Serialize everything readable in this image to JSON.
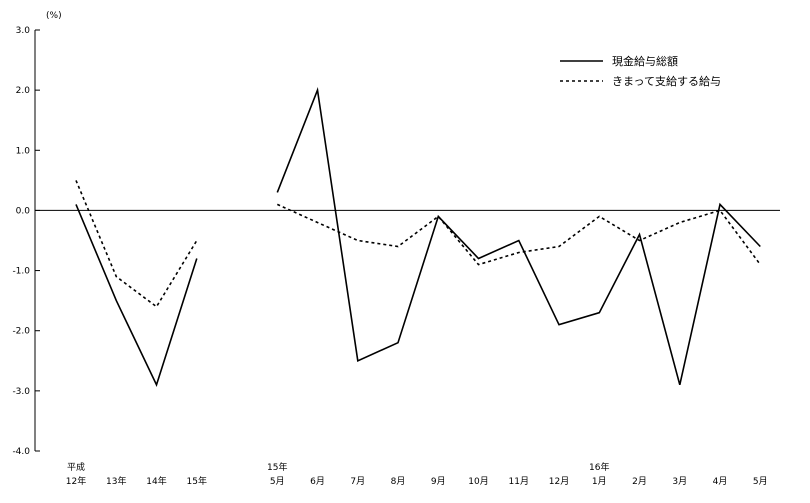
{
  "chart_data": {
    "type": "line",
    "unit_label": "(%)",
    "ylim": [
      -4.0,
      3.0
    ],
    "yticks": [
      "3.0",
      "2.0",
      "1.0",
      "0.0",
      "-1.0",
      "-2.0",
      "-3.0",
      "-4.0"
    ],
    "ytick_values": [
      3,
      2,
      1,
      0,
      -1,
      -2,
      -3,
      -4
    ],
    "grid": false,
    "legend_position": "top-right",
    "x_labels": [
      {
        "top": "平成",
        "bottom": "12年"
      },
      {
        "top": "",
        "bottom": "13年"
      },
      {
        "top": "",
        "bottom": "14年"
      },
      {
        "top": "",
        "bottom": "15年"
      },
      {
        "top": "",
        "bottom": ""
      },
      {
        "top": "15年",
        "bottom": "5月"
      },
      {
        "top": "",
        "bottom": "6月"
      },
      {
        "top": "",
        "bottom": "7月"
      },
      {
        "top": "",
        "bottom": "8月"
      },
      {
        "top": "",
        "bottom": "9月"
      },
      {
        "top": "",
        "bottom": "10月"
      },
      {
        "top": "",
        "bottom": "11月"
      },
      {
        "top": "",
        "bottom": "12月"
      },
      {
        "top": "16年",
        "bottom": "1月"
      },
      {
        "top": "",
        "bottom": "2月"
      },
      {
        "top": "",
        "bottom": "3月"
      },
      {
        "top": "",
        "bottom": "4月"
      },
      {
        "top": "",
        "bottom": "5月"
      }
    ],
    "series": [
      {
        "name": "現金給与総額",
        "style": "solid",
        "color": "#000000",
        "segments": [
          [
            [
              0,
              0.1
            ],
            [
              1,
              -1.5
            ],
            [
              2,
              -2.9
            ],
            [
              3,
              -0.8
            ]
          ],
          [
            [
              5,
              0.3
            ],
            [
              6,
              2.0
            ],
            [
              7,
              -2.5
            ],
            [
              8,
              -2.2
            ],
            [
              9,
              -0.1
            ],
            [
              10,
              -0.8
            ],
            [
              11,
              -0.5
            ],
            [
              12,
              -1.9
            ],
            [
              13,
              -1.7
            ],
            [
              14,
              -0.4
            ],
            [
              15,
              -2.9
            ],
            [
              16,
              0.1
            ],
            [
              17,
              -0.6
            ]
          ]
        ]
      },
      {
        "name": "きまって支給する給与",
        "style": "dashed",
        "color": "#000000",
        "segments": [
          [
            [
              0,
              0.5
            ],
            [
              1,
              -1.1
            ],
            [
              2,
              -1.6
            ],
            [
              3,
              -0.5
            ]
          ],
          [
            [
              5,
              0.1
            ],
            [
              6,
              -0.2
            ],
            [
              7,
              -0.5
            ],
            [
              8,
              -0.6
            ],
            [
              9,
              -0.1
            ],
            [
              10,
              -0.9
            ],
            [
              11,
              -0.7
            ],
            [
              12,
              -0.6
            ],
            [
              13,
              -0.1
            ],
            [
              14,
              -0.5
            ],
            [
              15,
              -0.2
            ],
            [
              16,
              0.0
            ],
            [
              17,
              -0.9
            ]
          ]
        ]
      }
    ]
  }
}
